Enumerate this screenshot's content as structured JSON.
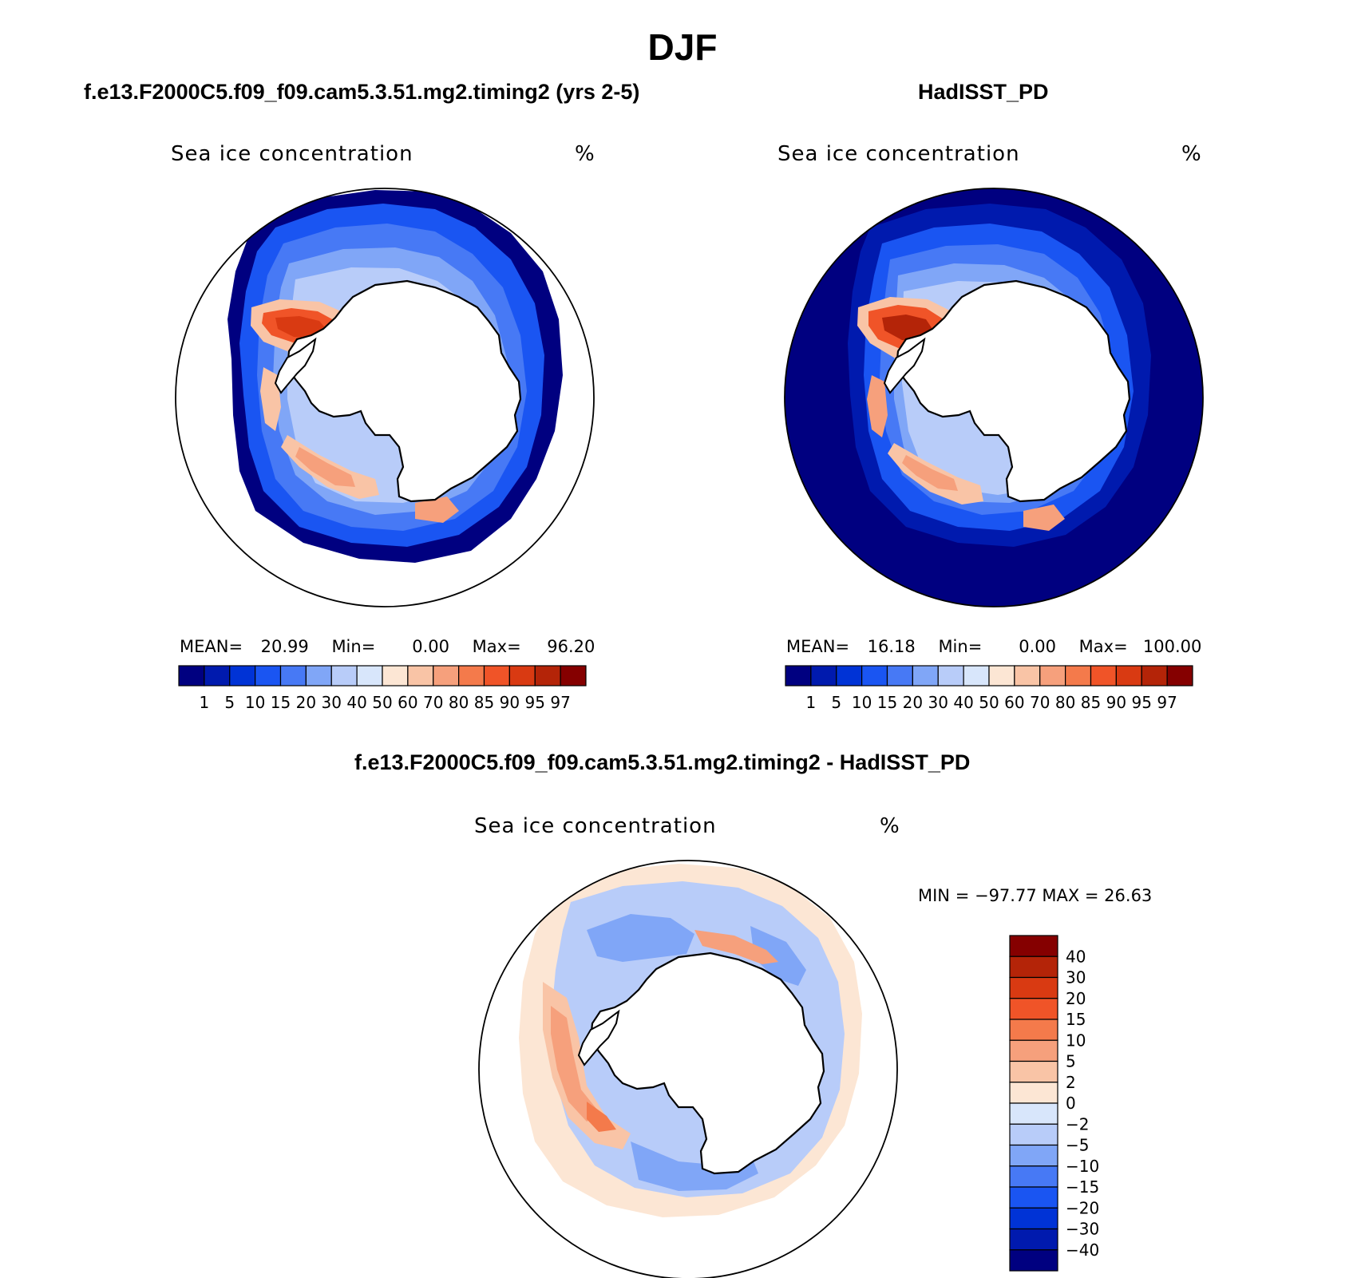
{
  "main_title": "DJF",
  "palette_abs": [
    "#000080",
    "#001aae",
    "#0033d6",
    "#1a55f2",
    "#4779f5",
    "#80a6f7",
    "#b8ccf9",
    "#d8e6fb",
    "#fce6d4",
    "#f9c4a6",
    "#f6a07c",
    "#f47a4b",
    "#f05428",
    "#d93a12",
    "#b42408",
    "#850000"
  ],
  "palette_diff": [
    "#000080",
    "#001aae",
    "#0033d6",
    "#1a55f2",
    "#4779f5",
    "#80a6f7",
    "#b8ccf9",
    "#d8e6fb",
    "#fce6d4",
    "#f9c4a6",
    "#f6a07c",
    "#f47a4b",
    "#f05428",
    "#d93a12",
    "#b42408",
    "#850000"
  ],
  "chart_data": [
    {
      "type": "heatmap",
      "panel": "model",
      "title": "f.e13.F2000C5.f09_f09.cam5.3.51.mg2.timing2 (yrs 2-5)",
      "subtitle": "Sea ice concentration",
      "units": "%",
      "stats": {
        "mean_label": "MEAN=",
        "mean": "20.99",
        "min_label": "Min=",
        "min": "0.00",
        "max_label": "Max=",
        "max": "96.20"
      },
      "colorbar_levels": [
        "1",
        "5",
        "10",
        "15",
        "20",
        "30",
        "40",
        "50",
        "60",
        "70",
        "80",
        "85",
        "90",
        "95",
        "97"
      ],
      "colorbar_orientation": "horizontal"
    },
    {
      "type": "heatmap",
      "panel": "observation",
      "title": "HadISST_PD",
      "subtitle": "Sea ice concentration",
      "units": "%",
      "stats": {
        "mean_label": "MEAN=",
        "mean": "16.18",
        "min_label": "Min=",
        "min": "0.00",
        "max_label": "Max=",
        "max": "100.00"
      },
      "colorbar_levels": [
        "1",
        "5",
        "10",
        "15",
        "20",
        "30",
        "40",
        "50",
        "60",
        "70",
        "80",
        "85",
        "90",
        "95",
        "97"
      ],
      "colorbar_orientation": "horizontal"
    },
    {
      "type": "heatmap",
      "panel": "difference",
      "title": "f.e13.F2000C5.f09_f09.cam5.3.51.mg2.timing2 - HadISST_PD",
      "subtitle": "Sea ice concentration",
      "units": "%",
      "stats_text": "MIN = −97.77 MAX =   26.63",
      "colorbar_levels": [
        "40",
        "30",
        "20",
        "15",
        "10",
        "5",
        "2",
        "0",
        "−2",
        "−5",
        "−10",
        "−15",
        "−20",
        "−30",
        "−40"
      ],
      "colorbar_orientation": "vertical"
    }
  ]
}
